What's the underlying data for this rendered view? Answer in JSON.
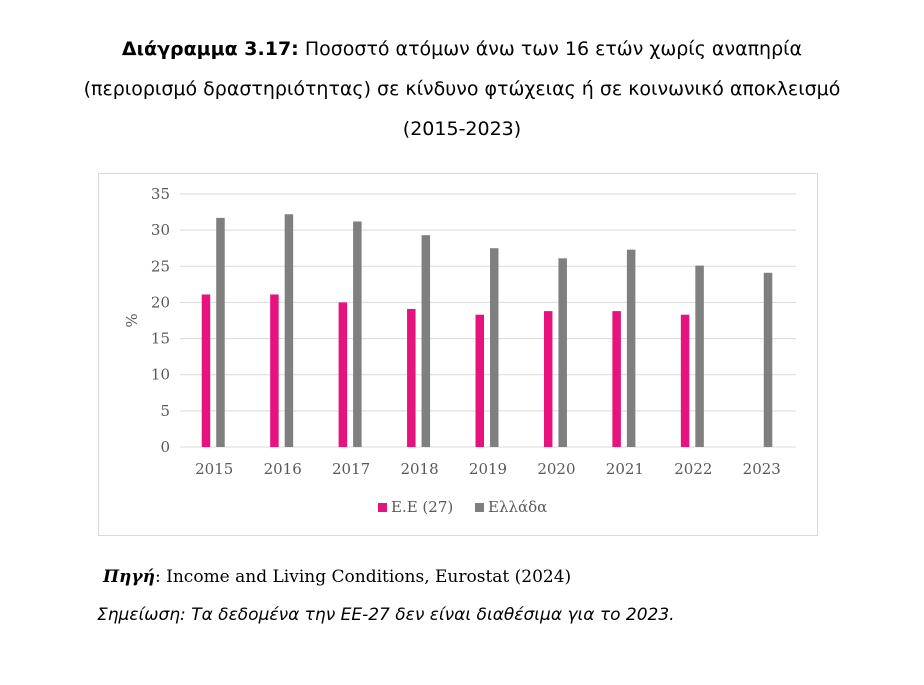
{
  "header": {
    "title_bold": "Διάγραμμα 3.17:",
    "title_rest": " Ποσοστό ατόμων άνω των 16 ετών χωρίς αναπηρία",
    "title_line2": "(περιορισμό δραστηριότητας) σε κίνδυνο φτώχειας ή σε κοινωνικό αποκλεισμό",
    "title_line3": "(2015-2023)"
  },
  "chart_data": {
    "type": "bar",
    "categories": [
      "2015",
      "2016",
      "2017",
      "2018",
      "2019",
      "2020",
      "2021",
      "2022",
      "2023"
    ],
    "series": [
      {
        "name": "Ε.Ε (27)",
        "color": "#e6137f",
        "values": [
          21.1,
          21.1,
          20.0,
          19.1,
          18.3,
          18.8,
          18.8,
          18.3,
          null
        ]
      },
      {
        "name": "Ελλάδα",
        "color": "#7f7f7f",
        "values": [
          31.7,
          32.2,
          31.2,
          29.3,
          27.5,
          26.1,
          27.3,
          25.1,
          24.1
        ]
      }
    ],
    "ylabel": "%",
    "xlabel": "",
    "ylim": [
      0,
      35
    ],
    "yticks": [
      0,
      5,
      10,
      15,
      20,
      25,
      30,
      35
    ],
    "grid": true,
    "legend": "bottom"
  },
  "footer": {
    "source_label": "Πηγή",
    "source_text": ": Income and Living Conditions, Eurostat (2024)",
    "note": "Σημείωση: Τα δεδομένα την ΕΕ-27 δεν είναι διαθέσιμα για το 2023."
  }
}
